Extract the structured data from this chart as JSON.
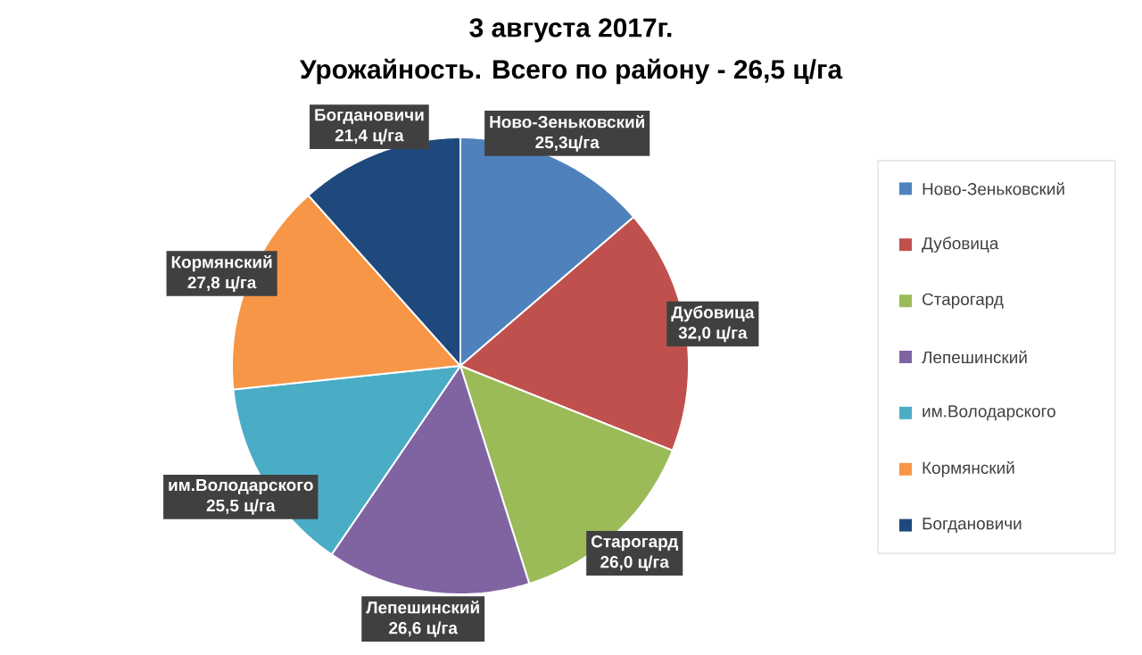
{
  "chart_data": {
    "type": "pie",
    "title": "3 августа 2017г.",
    "subtitle": "Урожайность. Всего по району - 26,5 ц/га",
    "categories": [
      "Ново-Зеньковский",
      "Дубовица",
      "Старогард",
      "Лепешинский",
      "им.Володарского",
      "Кормянский",
      "Богдановичи"
    ],
    "values": [
      25.3,
      32.0,
      26.0,
      26.6,
      25.5,
      27.8,
      21.4
    ],
    "value_labels": [
      "25,3ц/га",
      "32,0 ц/га",
      "26,0 ц/га",
      "26,6 ц/га",
      "25,5 ц/га",
      "27,8 ц/га",
      "21,4 ц/га"
    ],
    "colors": [
      "#4f81bd",
      "#c0504d",
      "#9bbb59",
      "#8064a2",
      "#4bacc6",
      "#f79646",
      "#1f497d"
    ],
    "legend": "right"
  }
}
